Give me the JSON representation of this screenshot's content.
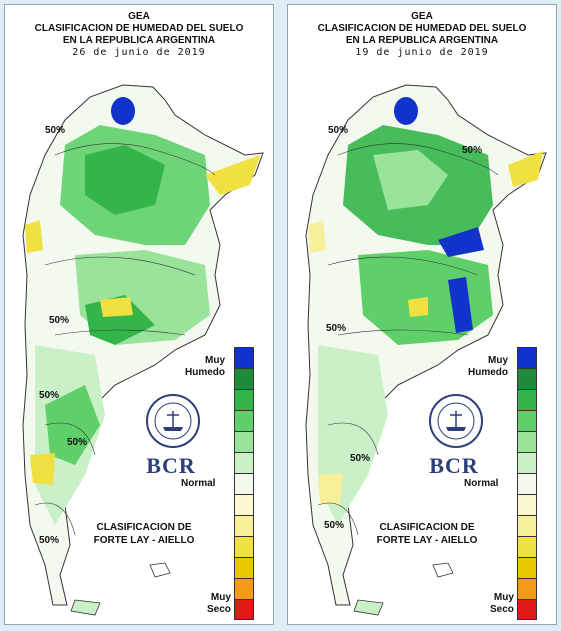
{
  "panels": [
    {
      "header_line1": "GEA",
      "header_line2": "CLASIFICACION DE HUMEDAD DEL SUELO",
      "header_line3": "EN LA REPUBLICA ARGENTINA",
      "date": "26 de junio de 2019",
      "contour_labels": [
        "50%",
        "50%",
        "50%",
        "50%",
        "50%"
      ]
    },
    {
      "header_line1": "GEA",
      "header_line2": "CLASIFICACION DE HUMEDAD DEL SUELO",
      "header_line3": "EN LA REPUBLICA ARGENTINA",
      "date": "19 de junio de 2019",
      "contour_labels": [
        "50%",
        "50%",
        "50%",
        "50%",
        "50%"
      ]
    }
  ],
  "legend": {
    "top_label_line1": "Muy",
    "top_label_line2": "Humedo",
    "middle_label": "Normal",
    "bottom_label_line1": "Muy",
    "bottom_label_line2": "Seco",
    "colors": [
      "#1133cc",
      "#1e8c3a",
      "#33b54a",
      "#5fcf6a",
      "#99e39a",
      "#c9f0c6",
      "#f3f9ef",
      "#fbf7cf",
      "#f7ef9a",
      "#f0e040",
      "#e8c800",
      "#f29a1a",
      "#e01919"
    ]
  },
  "classification": {
    "line1": "CLASIFICACION DE",
    "line2": "FORTE LAY - AIELLO"
  },
  "logo": {
    "text": "BCR",
    "seal_icon": "bolsa-de-comercio-de-rosario-seal-icon"
  }
}
